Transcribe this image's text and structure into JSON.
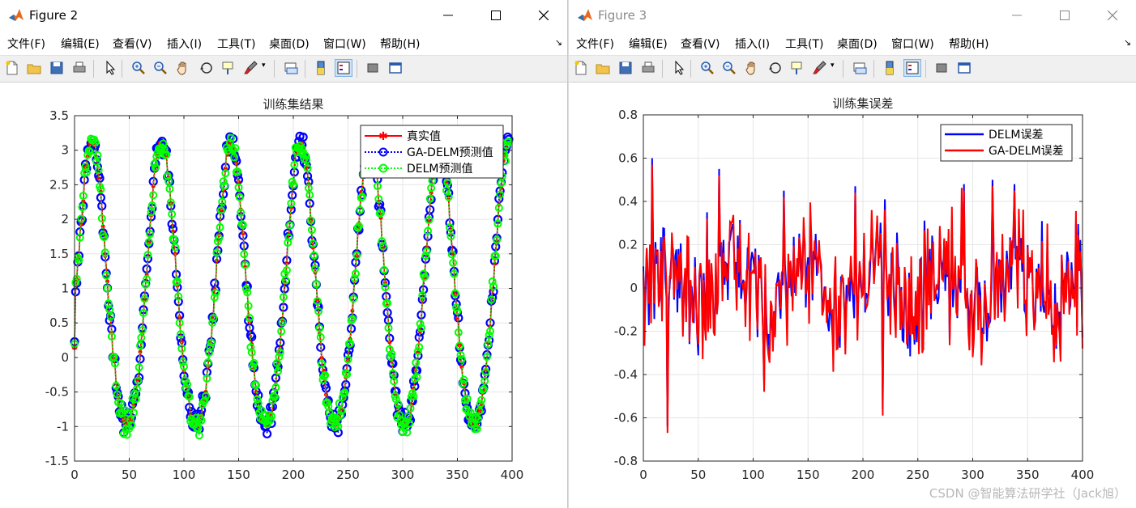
{
  "window1": {
    "title": "Figure 2",
    "menu": [
      "文件(F)",
      "编辑(E)",
      "查看(V)",
      "插入(I)",
      "工具(T)",
      "桌面(D)",
      "窗口(W)",
      "帮助(H)"
    ]
  },
  "window2": {
    "title": "Figure 3",
    "menu": [
      "文件(F)",
      "编辑(E)",
      "查看(V)",
      "插入(I)",
      "工具(T)",
      "桌面(D)",
      "窗口(W)",
      "帮助(H)"
    ]
  },
  "toolbar_icons": [
    "new-figure-icon",
    "open-file-icon",
    "save-icon",
    "print-icon",
    "select-pointer-icon",
    "zoom-in-icon",
    "zoom-out-icon",
    "pan-hand-icon",
    "rotate-3d-icon",
    "data-cursor-icon",
    "brush-icon",
    "link-plot-icon",
    "colorbar-icon",
    "legend-icon",
    "hide-plot-tools-icon",
    "show-plot-tools-icon"
  ],
  "watermark": "CSDN @智能算法研学社（Jack旭）",
  "chart_data": [
    {
      "type": "line",
      "title": "训练集结果",
      "xlabel": "",
      "ylabel": "",
      "xlim": [
        0,
        400
      ],
      "ylim": [
        -1.5,
        3.5
      ],
      "xticks": [
        0,
        50,
        100,
        150,
        200,
        250,
        300,
        350,
        400
      ],
      "yticks": [
        -1.5,
        -1,
        -0.5,
        0,
        0.5,
        1,
        1.5,
        2,
        2.5,
        3,
        3.5
      ],
      "grid": true,
      "legend_position": "top-right",
      "periodic_model": {
        "period": 63.5,
        "phase_at_peak": 16,
        "n": 397
      },
      "sample_points": {
        "x": [
          0,
          16,
          32,
          47,
          77,
          110,
          141,
          172,
          205,
          235,
          268,
          298,
          332,
          360,
          395
        ],
        "y": [
          0.15,
          3.05,
          0.3,
          -1.25,
          3.1,
          -1.1,
          3.08,
          -1.0,
          3.1,
          -1.0,
          3.0,
          -1.15,
          3.0,
          -1.0,
          3.05
        ]
      },
      "series": [
        {
          "name": "真实值",
          "color": "#ff0000",
          "marker": "asterisk",
          "style": "solid"
        },
        {
          "name": "GA-DELM预测值",
          "color": "#0000ff",
          "marker": "circle",
          "style": "dotted"
        },
        {
          "name": "DELM预测值",
          "color": "#00ff00",
          "marker": "circle",
          "style": "dotted"
        }
      ]
    },
    {
      "type": "line",
      "title": "训练集误差",
      "xlabel": "",
      "ylabel": "",
      "xlim": [
        0,
        400
      ],
      "ylim": [
        -0.8,
        0.8
      ],
      "xticks": [
        0,
        50,
        100,
        150,
        200,
        250,
        300,
        350,
        400
      ],
      "yticks": [
        -0.8,
        -0.6,
        -0.4,
        -0.2,
        0,
        0.2,
        0.4,
        0.6,
        0.8
      ],
      "grid": true,
      "legend_position": "top-right",
      "sample_points": {
        "x": [
          0,
          8,
          22,
          58,
          69,
          110,
          128,
          193,
          200,
          218,
          292,
          318,
          338,
          395,
          400
        ],
        "y": [
          0.1,
          0.6,
          -0.64,
          0.35,
          0.55,
          -0.45,
          0.45,
          0.47,
          0.5,
          -0.56,
          0.48,
          0.5,
          0.48,
          -0.23,
          -0.28
        ]
      },
      "series": [
        {
          "name": "DELM误差",
          "color": "#0000ff",
          "style": "solid"
        },
        {
          "name": "GA-DELM误差",
          "color": "#ff0000",
          "style": "solid"
        }
      ]
    }
  ]
}
